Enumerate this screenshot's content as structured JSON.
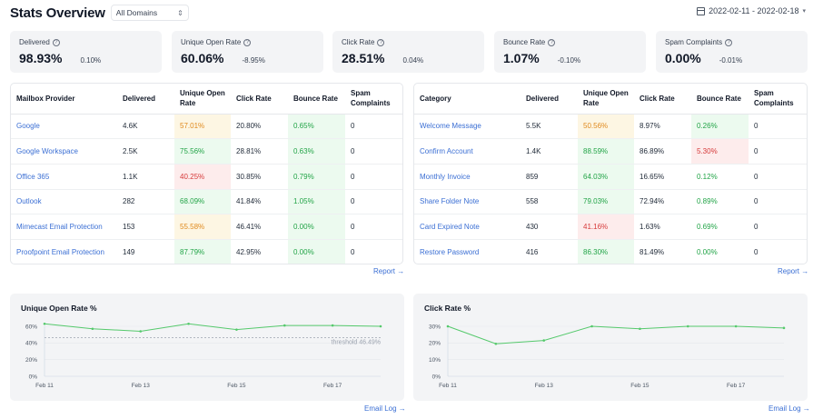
{
  "header": {
    "title": "Stats Overview",
    "domain_select": "All Domains",
    "date_range": "2022-02-11 - 2022-02-18"
  },
  "stats": [
    {
      "label": "Delivered",
      "value": "98.93%",
      "delta": "0.10%"
    },
    {
      "label": "Unique Open Rate",
      "value": "60.06%",
      "delta": "-8.95%"
    },
    {
      "label": "Click Rate",
      "value": "28.51%",
      "delta": "0.04%"
    },
    {
      "label": "Bounce Rate",
      "value": "1.07%",
      "delta": "-0.10%"
    },
    {
      "label": "Spam Complaints",
      "value": "0.00%",
      "delta": "-0.01%"
    }
  ],
  "provider_table": {
    "headers": [
      "Mailbox Provider",
      "Delivered",
      "Unique Open Rate",
      "Click Rate",
      "Bounce Rate",
      "Spam Complaints"
    ],
    "rows": [
      {
        "name": "Google",
        "delivered": "4.6K",
        "open": "57.01%",
        "open_level": "orange",
        "click": "20.80%",
        "bounce": "0.65%",
        "bounce_level": "green",
        "spam": "0"
      },
      {
        "name": "Google Workspace",
        "delivered": "2.5K",
        "open": "75.56%",
        "open_level": "green",
        "click": "28.81%",
        "bounce": "0.63%",
        "bounce_level": "green",
        "spam": "0"
      },
      {
        "name": "Office 365",
        "delivered": "1.1K",
        "open": "40.25%",
        "open_level": "red",
        "click": "30.85%",
        "bounce": "0.79%",
        "bounce_level": "green",
        "spam": "0"
      },
      {
        "name": "Outlook",
        "delivered": "282",
        "open": "68.09%",
        "open_level": "green",
        "click": "41.84%",
        "bounce": "1.05%",
        "bounce_level": "green",
        "spam": "0"
      },
      {
        "name": "Mimecast Email Protection",
        "delivered": "153",
        "open": "55.58%",
        "open_level": "orange",
        "click": "46.41%",
        "bounce": "0.00%",
        "bounce_level": "green",
        "spam": "0"
      },
      {
        "name": "Proofpoint Email Protection",
        "delivered": "149",
        "open": "87.79%",
        "open_level": "green",
        "click": "42.95%",
        "bounce": "0.00%",
        "bounce_level": "green",
        "spam": "0"
      }
    ],
    "link": "Report →"
  },
  "category_table": {
    "headers": [
      "Category",
      "Delivered",
      "Unique Open Rate",
      "Click Rate",
      "Bounce Rate",
      "Spam Complaints"
    ],
    "rows": [
      {
        "name": "Welcome Message",
        "delivered": "5.5K",
        "open": "50.56%",
        "open_level": "orange",
        "click": "8.97%",
        "bounce": "0.26%",
        "bounce_level": "green",
        "spam": "0"
      },
      {
        "name": "Confirm Account",
        "delivered": "1.4K",
        "open": "88.59%",
        "open_level": "green",
        "click": "86.89%",
        "bounce": "5.30%",
        "bounce_level": "red",
        "spam": "0"
      },
      {
        "name": "Monthly Invoice",
        "delivered": "859",
        "open": "64.03%",
        "open_level": "green",
        "click": "16.65%",
        "bounce": "0.12%",
        "bounce_level": "plain-green",
        "spam": "0"
      },
      {
        "name": "Share Folder Note",
        "delivered": "558",
        "open": "79.03%",
        "open_level": "green",
        "click": "72.94%",
        "bounce": "0.89%",
        "bounce_level": "plain-green",
        "spam": "0"
      },
      {
        "name": "Card Expired Note",
        "delivered": "430",
        "open": "41.16%",
        "open_level": "red",
        "click": "1.63%",
        "bounce": "0.69%",
        "bounce_level": "plain-green",
        "spam": "0"
      },
      {
        "name": "Restore Password",
        "delivered": "416",
        "open": "86.30%",
        "open_level": "green",
        "click": "81.49%",
        "bounce": "0.00%",
        "bounce_level": "plain-green",
        "spam": "0"
      }
    ],
    "link": "Report →"
  },
  "colors": {
    "line": "#55c96c",
    "threshold": "#9ca3af",
    "link": "#3b6fd4"
  },
  "chart_data": [
    {
      "type": "line",
      "title": "Unique Open Rate %",
      "x": [
        "Feb 11",
        "Feb 12",
        "Feb 13",
        "Feb 14",
        "Feb 15",
        "Feb 16",
        "Feb 17",
        "Feb 18"
      ],
      "x_ticks": [
        "Feb 11",
        "Feb 13",
        "Feb 15",
        "Feb 17"
      ],
      "values": [
        63,
        57,
        54,
        63,
        56,
        61,
        61,
        60
      ],
      "ylim": [
        0,
        60
      ],
      "y_ticks": [
        "0%",
        "20%",
        "40%",
        "60%"
      ],
      "threshold": 46.49,
      "threshold_label": "threshold 46.49%",
      "link": "Email Log →"
    },
    {
      "type": "line",
      "title": "Click Rate %",
      "x": [
        "Feb 11",
        "Feb 12",
        "Feb 13",
        "Feb 14",
        "Feb 15",
        "Feb 16",
        "Feb 17",
        "Feb 18"
      ],
      "x_ticks": [
        "Feb 11",
        "Feb 13",
        "Feb 15",
        "Feb 17"
      ],
      "values": [
        30,
        19.5,
        21.5,
        30,
        28.5,
        30,
        30,
        29
      ],
      "ylim": [
        0,
        30
      ],
      "y_ticks": [
        "0%",
        "10%",
        "20%",
        "30%"
      ],
      "link": "Email Log →"
    }
  ]
}
